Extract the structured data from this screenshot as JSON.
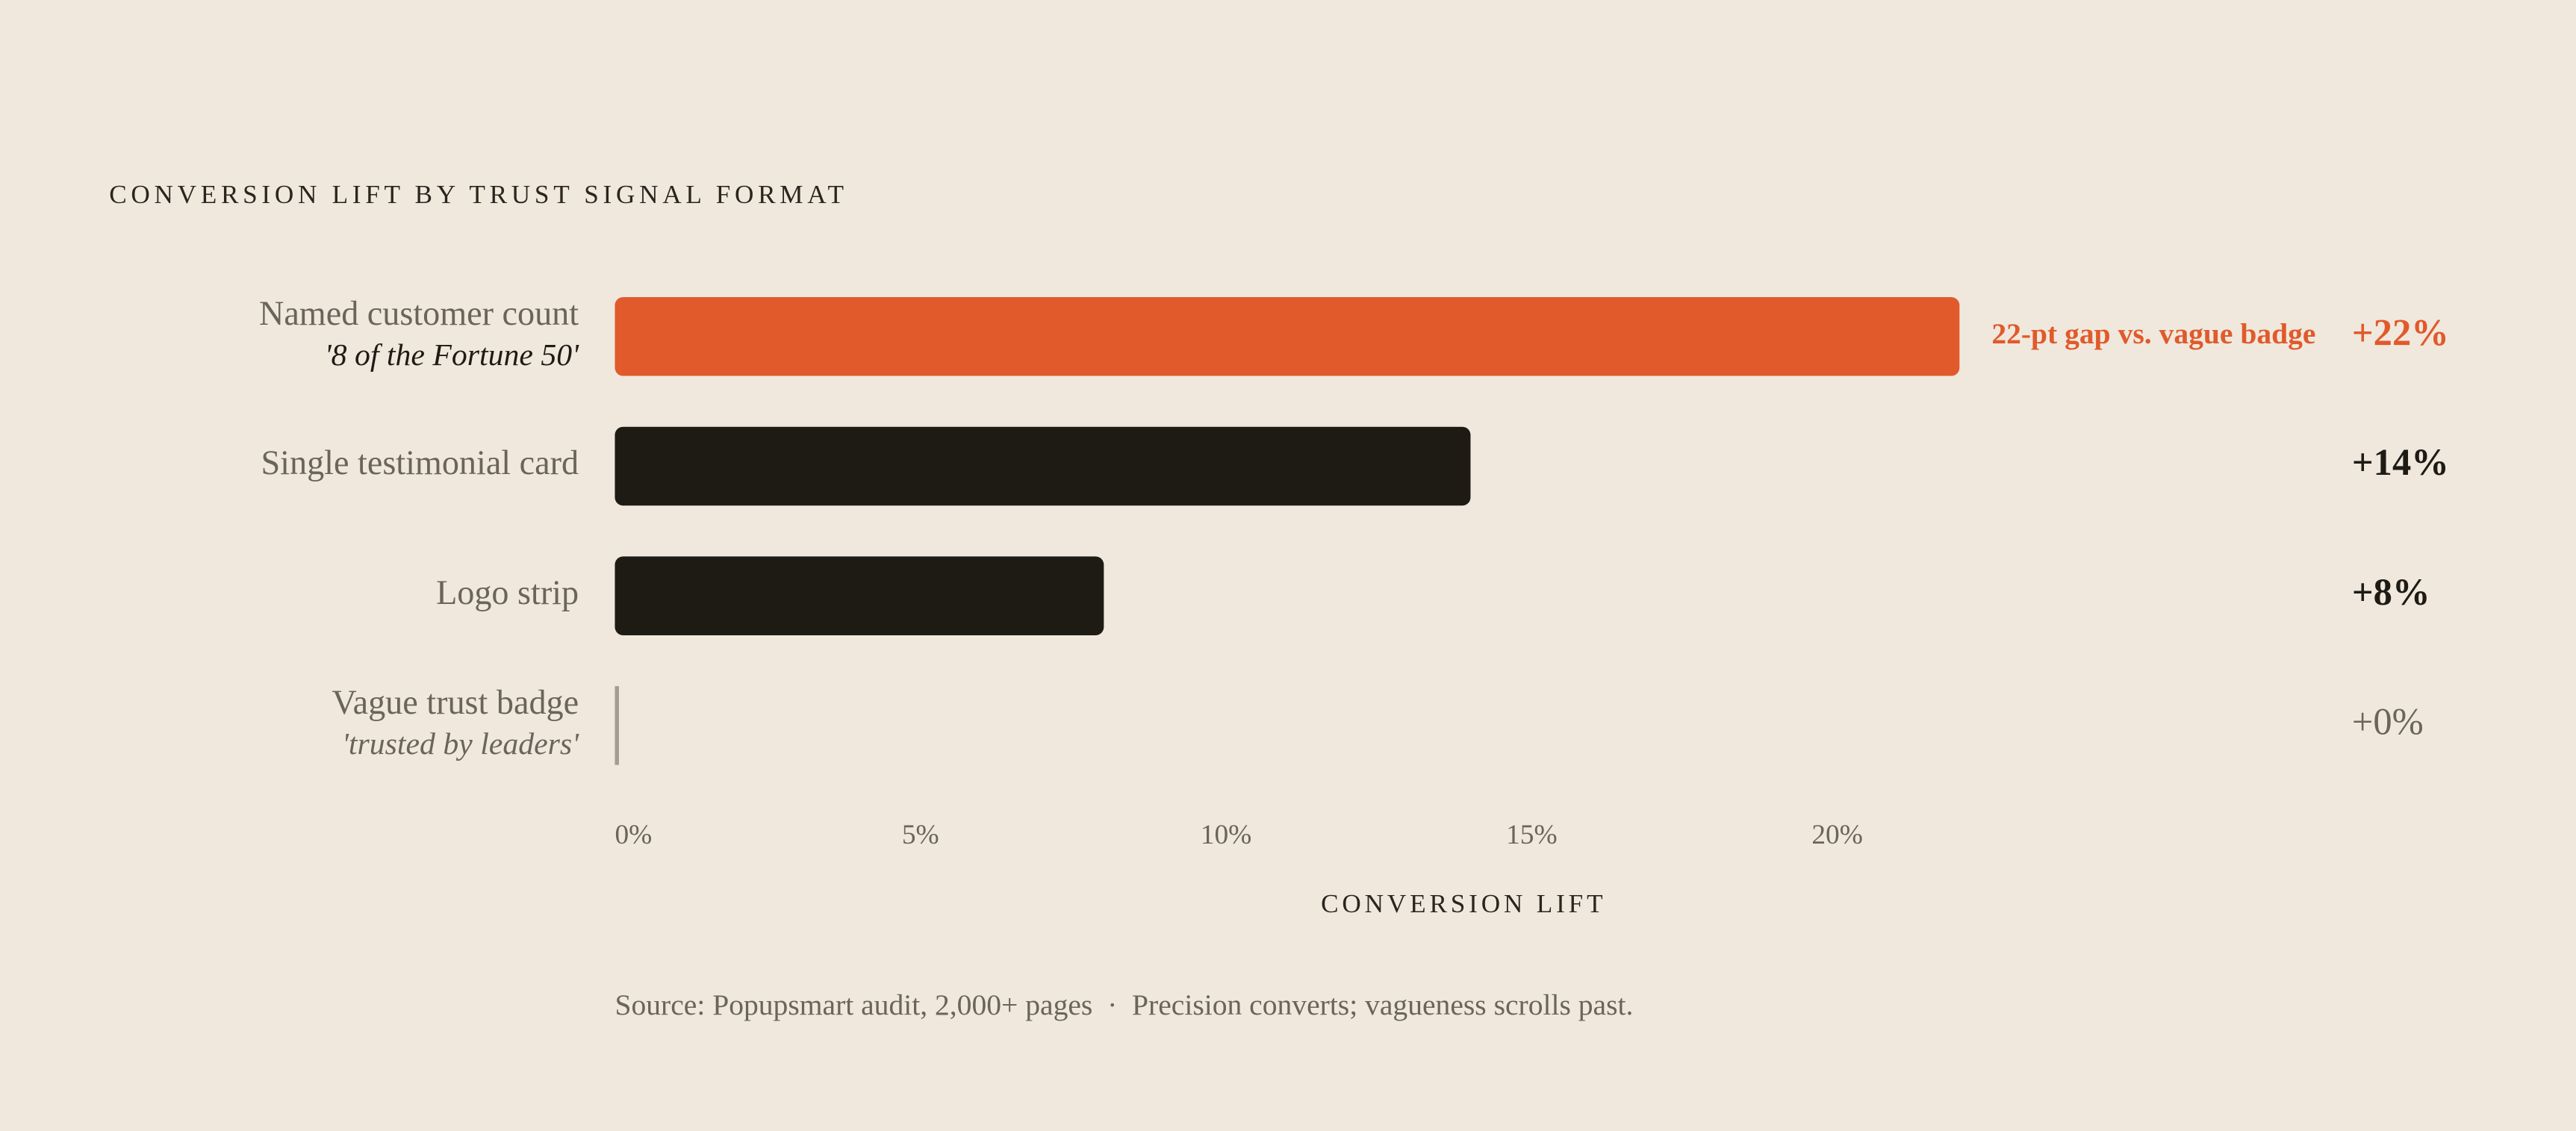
{
  "chart_data": {
    "type": "bar",
    "orientation": "horizontal",
    "title": "CONVERSION LIFT BY TRUST SIGNAL FORMAT",
    "categories": [
      "Named customer count",
      "Single testimonial card",
      "Logo strip",
      "Vague trust badge"
    ],
    "category_notes": [
      "'8 of the Fortune 50'",
      null,
      null,
      "'trusted by leaders'"
    ],
    "values": [
      22,
      14,
      8,
      0
    ],
    "value_labels": [
      "+22%",
      "+14%",
      "+8%",
      "+0%"
    ],
    "colors": [
      "#e05a2b",
      "#1e1b15",
      "#1e1b15",
      "#a39c92"
    ],
    "annotation": "22-pt gap vs. vague badge",
    "xlim": [
      0,
      22
    ],
    "xticks": [
      {
        "value": 0,
        "label": "0%"
      },
      {
        "value": 5,
        "label": "5%"
      },
      {
        "value": 10,
        "label": "10%"
      },
      {
        "value": 15,
        "label": "15%"
      },
      {
        "value": 20,
        "label": "20%"
      }
    ],
    "xlabel": "CONVERSION LIFT",
    "source": "Source: Popupsmart audit, 2,000+ pages  ·  Precision converts; vagueness scrolls past."
  }
}
